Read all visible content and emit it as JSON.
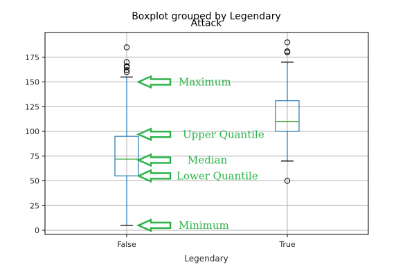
{
  "chart_data": {
    "type": "box",
    "suptitle": "Boxplot grouped by Legendary",
    "title": "Attack",
    "xlabel": "Legendary",
    "ylabel": "",
    "ylim": [
      -3,
      200
    ],
    "yticks": [
      0,
      25,
      50,
      75,
      100,
      125,
      150,
      175
    ],
    "grid": true,
    "categories": [
      "False",
      "True"
    ],
    "boxes": [
      {
        "category": "False",
        "whisker_low": 5,
        "q1": 55,
        "median": 72,
        "q3": 95,
        "whisker_high": 155,
        "outliers": [
          160,
          162,
          165,
          166,
          170,
          185
        ]
      },
      {
        "category": "True",
        "whisker_low": 70,
        "q1": 100,
        "median": 110,
        "q3": 131,
        "whisker_high": 170,
        "outliers": [
          50,
          180,
          181,
          190
        ]
      }
    ],
    "annotations": [
      {
        "text": "Maximum",
        "value": 150
      },
      {
        "text": "Upper Quantile",
        "value": 97
      },
      {
        "text": "Median",
        "value": 71
      },
      {
        "text": "Lower Quantile",
        "value": 55
      },
      {
        "text": "Minimum",
        "value": 5
      }
    ]
  },
  "colors": {
    "box": "#1f77b4",
    "median": "#2ca02c",
    "grid": "#b0b0b0",
    "annotation": "#2db34a",
    "arrow_fill": "#ffffff"
  }
}
